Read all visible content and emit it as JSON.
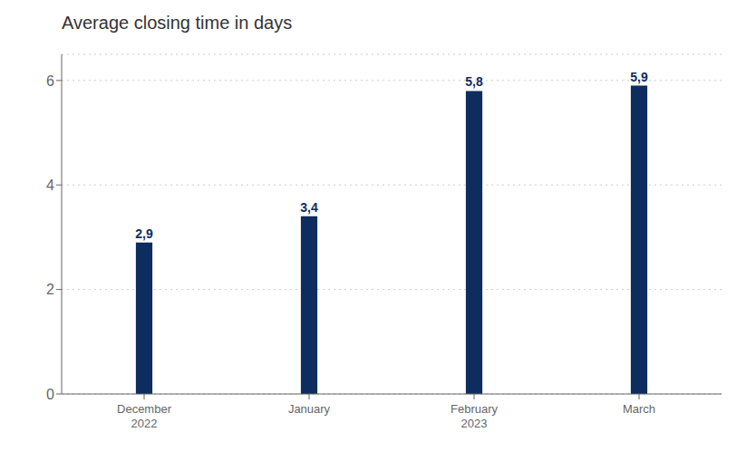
{
  "chart_data": {
    "type": "bar",
    "title": "Average closing time in days",
    "categories": [
      "December\n2022",
      "January",
      "February\n2023",
      "March"
    ],
    "values": [
      2.9,
      3.4,
      5.8,
      5.9
    ],
    "value_labels": [
      "2,9",
      "3,4",
      "5,8",
      "5,9"
    ],
    "data_labels": true,
    "color": "#0d2d5e",
    "ylim": [
      0,
      6.5
    ],
    "yticks": [
      0,
      2,
      4,
      6
    ],
    "grid": true
  }
}
